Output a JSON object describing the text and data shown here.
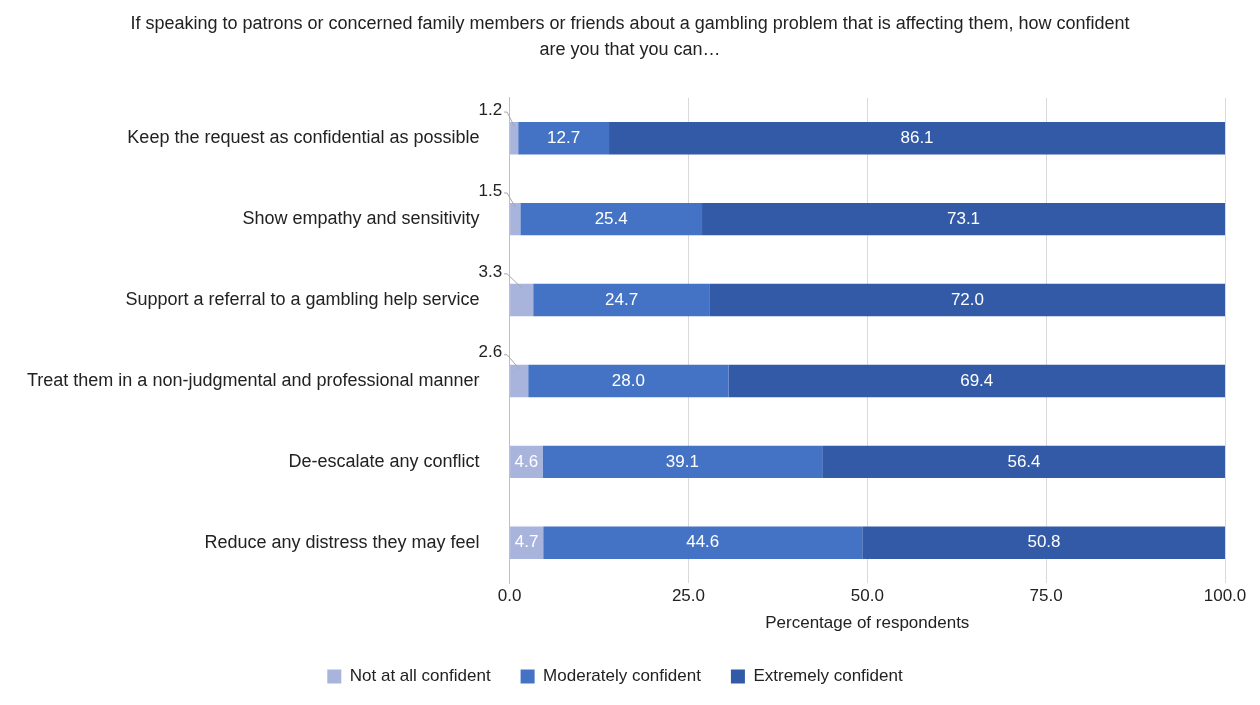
{
  "chart_data": {
    "type": "bar",
    "orientation": "horizontal",
    "stacked": true,
    "title": "If speaking to patrons or concerned family members or friends about a gambling problem that is affecting them, how confident are you that you can…",
    "xlabel": "Percentage of respondents",
    "categories": [
      "Keep the request as confidential as possible",
      "Show empathy and sensitivity",
      "Support a referral to a gambling help service",
      "Treat them in a non-judgmental and professional manner",
      "De-escalate any conflict",
      "Reduce any distress they may feel"
    ],
    "series": [
      {
        "name": "Not at all confident",
        "color": "#a9b4dc",
        "values": [
          1.2,
          1.5,
          3.3,
          2.6,
          4.6,
          4.7
        ],
        "value_labels": [
          "1.2",
          "1.5",
          "3.3",
          "2.6",
          "4.6",
          "4.7"
        ]
      },
      {
        "name": "Moderately confident",
        "color": "#4472c4",
        "values": [
          12.7,
          25.4,
          24.7,
          28.0,
          39.1,
          44.6
        ],
        "value_labels": [
          "12.7",
          "25.4",
          "24.7",
          "28.0",
          "39.1",
          "44.6"
        ]
      },
      {
        "name": "Extremely confident",
        "color": "#335aa6",
        "values": [
          86.1,
          73.1,
          72.0,
          69.4,
          56.4,
          50.8
        ],
        "value_labels": [
          "86.1",
          "73.1",
          "72.0",
          "69.4",
          "56.4",
          "50.8"
        ]
      }
    ],
    "xlim": [
      0,
      100
    ],
    "xticks": [
      {
        "value": 0,
        "label": "0.0"
      },
      {
        "value": 25,
        "label": "25.0"
      },
      {
        "value": 50,
        "label": "50.0"
      },
      {
        "value": 75,
        "label": "75.0"
      },
      {
        "value": 100,
        "label": "100.0"
      }
    ],
    "grid": "x",
    "legend": "bottom"
  }
}
